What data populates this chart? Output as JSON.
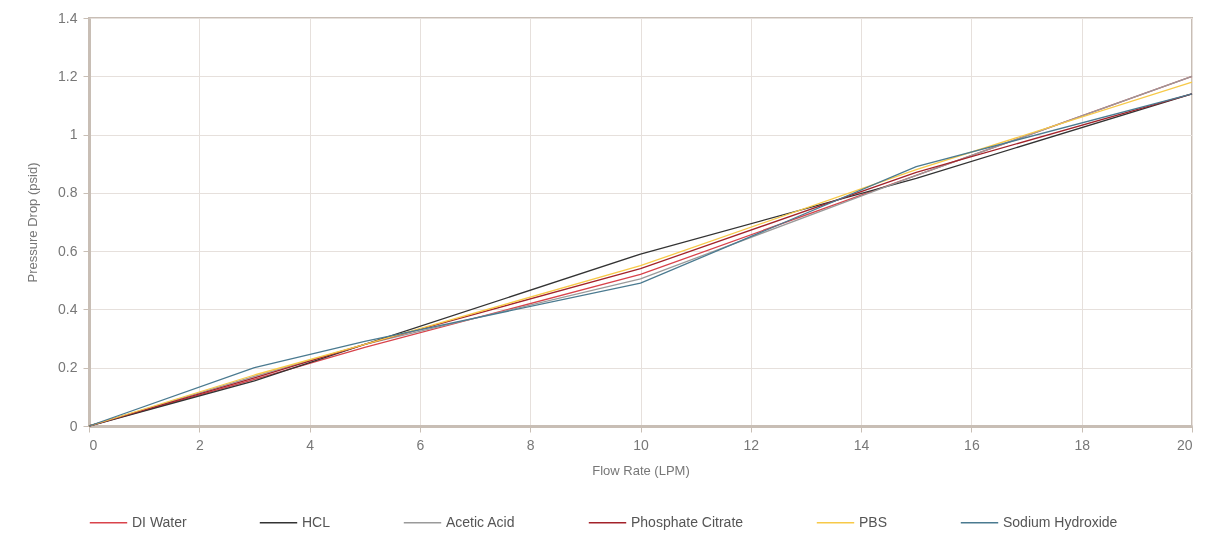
{
  "chart_data": {
    "type": "line",
    "xlabel": "Flow Rate (LPM)",
    "ylabel": "Pressure Drop (psid)",
    "x": [
      0,
      3,
      5,
      10,
      15,
      20
    ],
    "series": [
      {
        "name": "DI Water",
        "color": "#d9434b",
        "values": [
          0,
          0.16,
          0.27,
          0.52,
          0.86,
          1.2
        ]
      },
      {
        "name": "HCL",
        "color": "#333333",
        "values": [
          0,
          0.155,
          0.28,
          0.59,
          0.85,
          1.14
        ]
      },
      {
        "name": "Acetic Acid",
        "color": "#9a9a9a",
        "values": [
          0,
          0.17,
          0.28,
          0.505,
          0.86,
          1.2
        ]
      },
      {
        "name": "Phosphate Citrate",
        "color": "#a3222a",
        "values": [
          0,
          0.165,
          0.28,
          0.54,
          0.87,
          1.14
        ]
      },
      {
        "name": "PBS",
        "color": "#f7c948",
        "values": [
          0,
          0.175,
          0.28,
          0.55,
          0.88,
          1.18
        ]
      },
      {
        "name": "Sodium Hydroxide",
        "color": "#4a7a90",
        "values": [
          0,
          0.2,
          0.29,
          0.49,
          0.89,
          1.14
        ]
      }
    ],
    "xlim": [
      0,
      20
    ],
    "xticks": [
      0,
      2,
      4,
      6,
      8,
      10,
      12,
      14,
      16,
      18,
      20
    ],
    "ylim": [
      0,
      1.4
    ],
    "yticks": [
      0,
      0.2,
      0.4,
      0.6,
      0.8,
      1,
      1.2,
      1.4
    ],
    "grid": true,
    "legend": "bottom",
    "marker": "none",
    "line_style": "solid"
  }
}
